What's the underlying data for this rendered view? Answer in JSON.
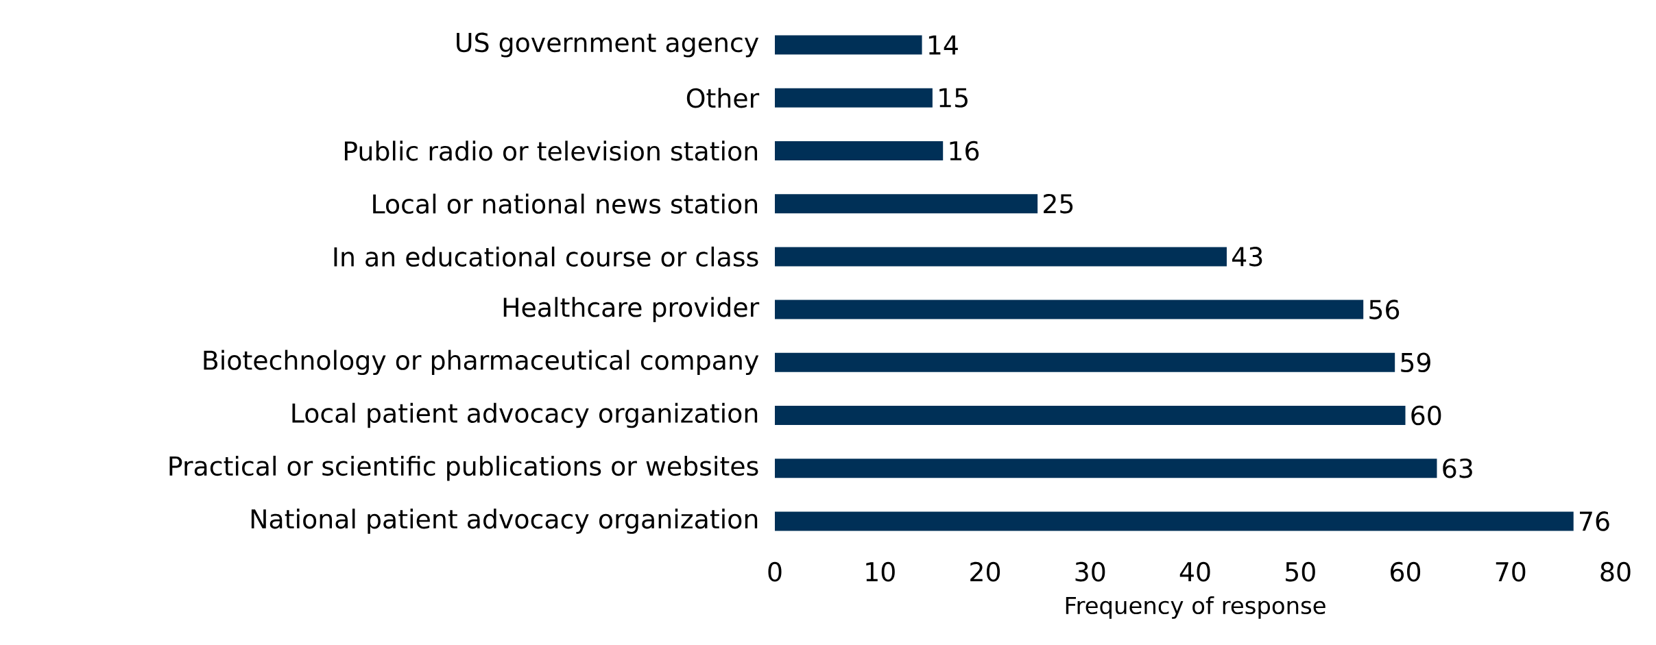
{
  "chart_data": {
    "type": "bar",
    "orientation": "horizontal",
    "xlabel": "Frequency of response",
    "categories": [
      "US government agency",
      "Other",
      "Public radio or television station",
      "Local or national news station",
      "In an educational course or class",
      "Healthcare provider",
      "Biotechnology or pharmaceutical company",
      "Local patient advocacy organization",
      "Practical or scientific publications or websites",
      "National patient advocacy organization"
    ],
    "values": [
      14,
      15,
      16,
      25,
      43,
      56,
      59,
      60,
      63,
      76
    ],
    "color": "#003057",
    "xlim": [
      0,
      80
    ],
    "xticks": [
      0,
      10,
      20,
      30,
      40,
      50,
      60,
      70,
      80
    ],
    "data_labels": true
  }
}
